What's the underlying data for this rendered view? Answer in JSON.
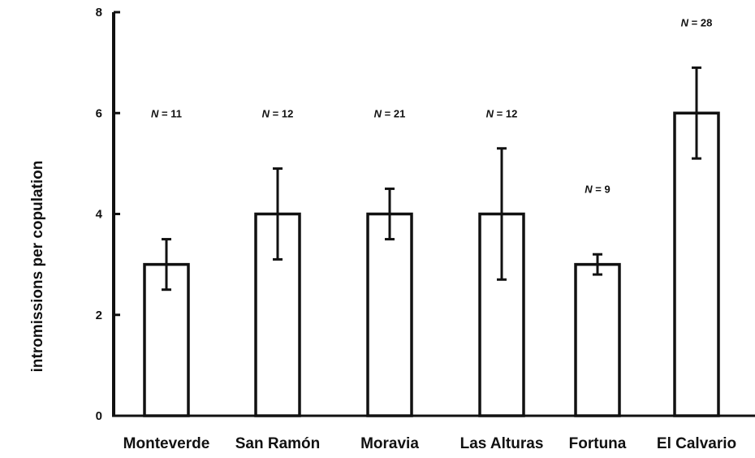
{
  "chart_data": {
    "type": "bar",
    "title": "",
    "xlabel": "",
    "ylabel": "intromissions per copulation",
    "ylim": [
      0,
      8
    ],
    "yticks": [
      "0",
      "2",
      "4",
      "6",
      "8"
    ],
    "grid": false,
    "categories": [
      "Monteverde",
      "San Ramón",
      "Moravia",
      "Las Alturas",
      "Fortuna",
      "El Calvario"
    ],
    "values": [
      3,
      4,
      4,
      4,
      3,
      6
    ],
    "error_low": [
      2.5,
      3.1,
      3.5,
      2.7,
      2.8,
      5.1
    ],
    "error_high": [
      3.5,
      4.9,
      4.5,
      5.3,
      3.2,
      6.9
    ],
    "n_labels": [
      "N = 11",
      "N = 12",
      "N = 21",
      "N = 12",
      "N = 9",
      "N = 28"
    ],
    "n_label_values": [
      6,
      6,
      6,
      6,
      4.5,
      7.8
    ]
  }
}
